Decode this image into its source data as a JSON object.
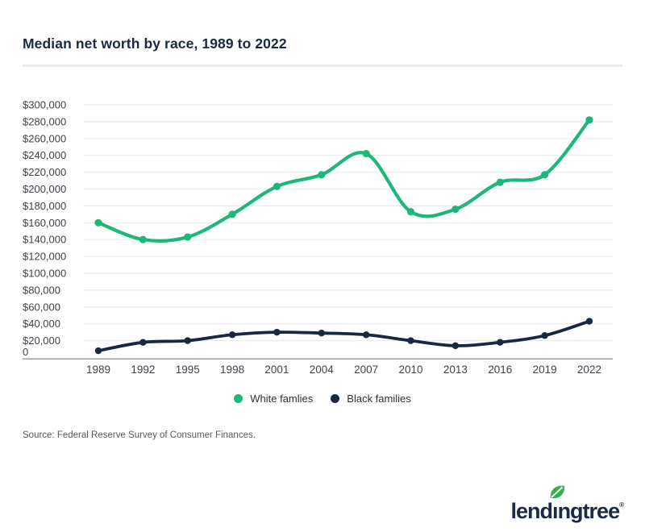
{
  "title": "Median net worth by race, 1989 to 2022",
  "source": "Source: Federal Reserve Survey of Consumer Finances.",
  "colors": {
    "series_green": "#1cb878",
    "series_navy": "#182841",
    "title_navy": "#1b2a41",
    "gridline": "#ececec",
    "axis_line": "#7a7a7a",
    "logo_navy": "#1d2a44",
    "leaf_green": "#2db24e"
  },
  "legend": [
    {
      "label": "White famlies",
      "color": "#1cb878"
    },
    {
      "label": "Black families",
      "color": "#182841"
    }
  ],
  "logo": {
    "part1": "lend",
    "part2": "ı",
    "part3": "ngtree",
    "registered": "®"
  },
  "chart_data": {
    "type": "line",
    "categories": [
      "1989",
      "1992",
      "1995",
      "1998",
      "2001",
      "2004",
      "2007",
      "2010",
      "2013",
      "2016",
      "2019",
      "2022"
    ],
    "series": [
      {
        "name": "White famlies",
        "color": "#1cb878",
        "values": [
          160000,
          140000,
          143000,
          170000,
          203000,
          217000,
          242000,
          173000,
          176000,
          208000,
          217000,
          282000
        ]
      },
      {
        "name": "Black families",
        "color": "#182841",
        "values": [
          8000,
          18000,
          20000,
          27000,
          30000,
          29000,
          27000,
          20000,
          14000,
          18000,
          26000,
          43000
        ]
      }
    ],
    "xlabel": "",
    "ylabel": "",
    "ylim": [
      0,
      300000
    ],
    "y_tick_step": 20000,
    "y_tick_labels": [
      "0",
      "$20,000",
      "$40,000",
      "$60,000",
      "$80,000",
      "$100,000",
      "$120,000",
      "$140,000",
      "$160,000",
      "$180,000",
      "$200,000",
      "$220,000",
      "$240,000",
      "$260,000",
      "$280,000",
      "$300,000"
    ],
    "grid": true,
    "legend_position": "bottom"
  }
}
